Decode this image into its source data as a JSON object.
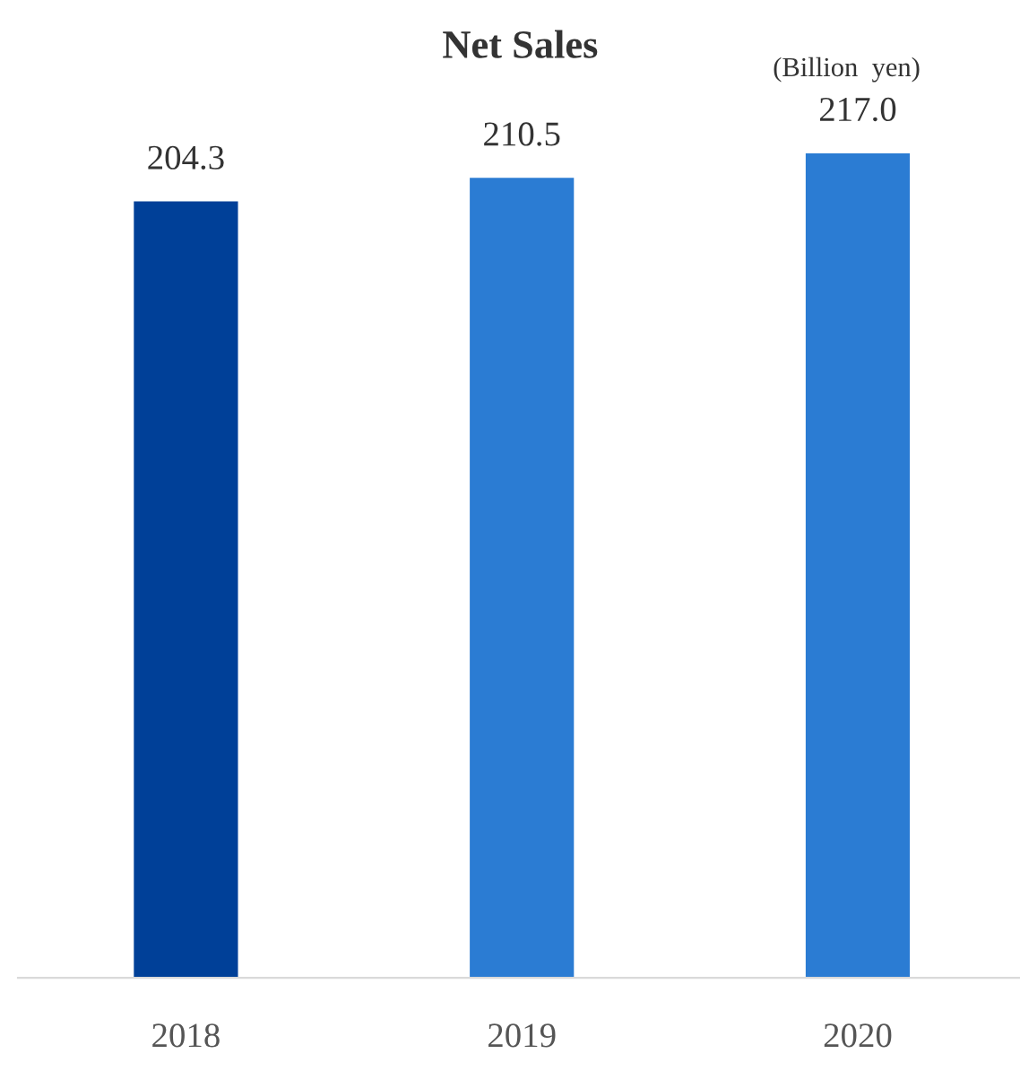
{
  "chart_data": {
    "type": "bar",
    "title": "Net Sales",
    "categories": [
      "2018",
      "2019",
      "2020"
    ],
    "values": [
      204.3,
      210.5,
      217.0
    ],
    "colors": [
      "#004098",
      "#2b7cd3",
      "#2b7cd3"
    ],
    "value_labels": [
      "204.3",
      "210.5",
      "217.0"
    ],
    "annotations": [
      "(Billion  yen)"
    ],
    "grid": false,
    "legend": false
  }
}
